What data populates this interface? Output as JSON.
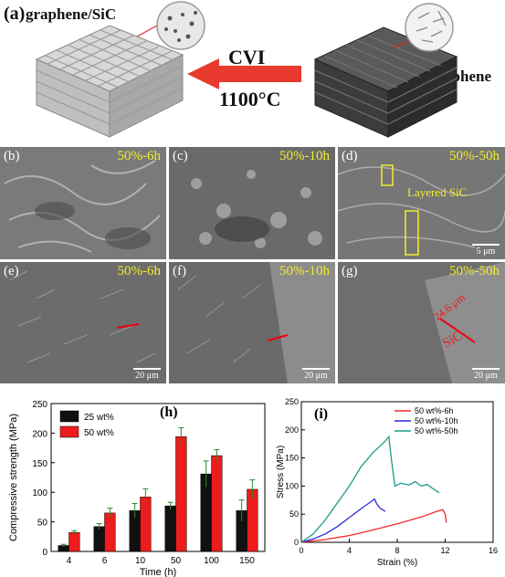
{
  "panel_a": {
    "label": "(a)",
    "material_left": "graphene/SiC",
    "material_right": "graphene",
    "process": "CVI",
    "temperature": "1100°C"
  },
  "sem_panels": [
    {
      "label": "(b)",
      "caption": "50%-6h",
      "scale": ""
    },
    {
      "label": "(c)",
      "caption": "50%-10h",
      "scale": ""
    },
    {
      "label": "(d)",
      "caption": "50%-50h",
      "scale": "5 μm",
      "annotation": "Layered SiC"
    },
    {
      "label": "(e)",
      "caption": "50%-6h",
      "scale": "20 μm"
    },
    {
      "label": "(f)",
      "caption": "50%-10h",
      "scale": "20 μm"
    },
    {
      "label": "(g)",
      "caption": "50%-50h",
      "scale": "20 μm",
      "annotation_thickness": "24.6 μm",
      "annotation_material": "SiC"
    }
  ],
  "chart_data": [
    {
      "panel": "(h)",
      "type": "bar",
      "categories": [
        "4",
        "6",
        "10",
        "50",
        "100",
        "150"
      ],
      "xlabel": "Time (h)",
      "ylabel": "Compressive strength (MPa)",
      "ylim": [
        0,
        250
      ],
      "yticks": [
        0,
        50,
        100,
        150,
        200,
        250
      ],
      "legend_position": "top-left",
      "series": [
        {
          "name": "25 wt%",
          "color": "#111111",
          "values": [
            10,
            42,
            69,
            77,
            131,
            69
          ],
          "errors": [
            2,
            5,
            12,
            6,
            22,
            18
          ]
        },
        {
          "name": "50 wt%",
          "color": "#ee1c1c",
          "values": [
            32,
            65,
            92,
            194,
            162,
            105
          ],
          "errors": [
            3,
            8,
            14,
            15,
            10,
            16
          ]
        }
      ]
    },
    {
      "panel": "(i)",
      "type": "line",
      "xlabel": "Strain (%)",
      "ylabel": "Stress (MPa)",
      "xlim": [
        0,
        16
      ],
      "ylim": [
        0,
        250
      ],
      "xticks": [
        0,
        4,
        8,
        12,
        16
      ],
      "yticks": [
        0,
        50,
        100,
        150,
        200,
        250
      ],
      "legend_position": "top-right",
      "series": [
        {
          "name": "50 wt%-6h",
          "color": "#ee2a2a",
          "points": [
            [
              0,
              0
            ],
            [
              2,
              5
            ],
            [
              4,
              12
            ],
            [
              6,
              22
            ],
            [
              8,
              33
            ],
            [
              10,
              45
            ],
            [
              11.3,
              55
            ],
            [
              11.8,
              58
            ],
            [
              12,
              50
            ],
            [
              12.1,
              35
            ]
          ]
        },
        {
          "name": "50 wt%-10h",
          "color": "#2a2ad8",
          "points": [
            [
              0,
              0
            ],
            [
              1,
              6
            ],
            [
              2,
              15
            ],
            [
              3,
              28
            ],
            [
              4,
              44
            ],
            [
              5,
              60
            ],
            [
              5.8,
              72
            ],
            [
              6.1,
              77
            ],
            [
              6.3,
              68
            ],
            [
              6.6,
              60
            ],
            [
              7,
              55
            ]
          ]
        },
        {
          "name": "50 wt%-50h",
          "color": "#1a9a8a",
          "points": [
            [
              0,
              0
            ],
            [
              1,
              15
            ],
            [
              2,
              40
            ],
            [
              3,
              70
            ],
            [
              4,
              100
            ],
            [
              5,
              135
            ],
            [
              6,
              160
            ],
            [
              7,
              180
            ],
            [
              7.3,
              188
            ],
            [
              7.5,
              150
            ],
            [
              7.8,
              100
            ],
            [
              8.3,
              105
            ],
            [
              9,
              102
            ],
            [
              9.5,
              108
            ],
            [
              10,
              100
            ],
            [
              10.5,
              103
            ],
            [
              11,
              95
            ],
            [
              11.5,
              88
            ]
          ]
        }
      ]
    }
  ]
}
